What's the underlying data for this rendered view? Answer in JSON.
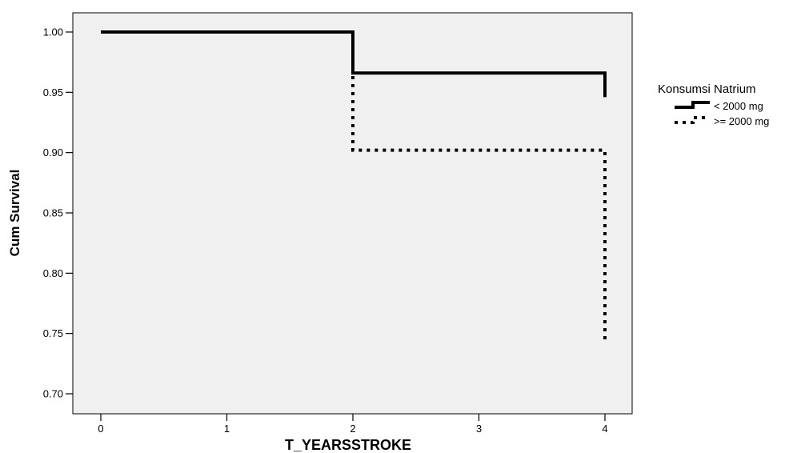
{
  "chart_data": {
    "type": "line",
    "subtype": "kaplan-meier step",
    "title": "",
    "xlabel": "T_YEARSSTROKE",
    "ylabel": "Cum Survival",
    "xlim": [
      0,
      4
    ],
    "ylim": [
      0.7,
      1.0
    ],
    "xticks": [
      0,
      1,
      2,
      3,
      4
    ],
    "yticks": [
      "0.70",
      "0.75",
      "0.80",
      "0.85",
      "0.90",
      "0.95",
      "1.00"
    ],
    "grid": false,
    "background": "#f0f0f0",
    "legend": {
      "title": "Konsumsi Natrium",
      "placement": "right"
    },
    "series": [
      {
        "name": "< 2000 mg",
        "style": "solid",
        "color": "#000000",
        "steps": [
          [
            0,
            1.0
          ],
          [
            2,
            0.966
          ],
          [
            4,
            0.946
          ]
        ]
      },
      {
        "name": ">= 2000 mg",
        "style": "dotted",
        "color": "#000000",
        "steps": [
          [
            0,
            1.0
          ],
          [
            2,
            0.902
          ],
          [
            4,
            0.742
          ]
        ]
      }
    ]
  }
}
